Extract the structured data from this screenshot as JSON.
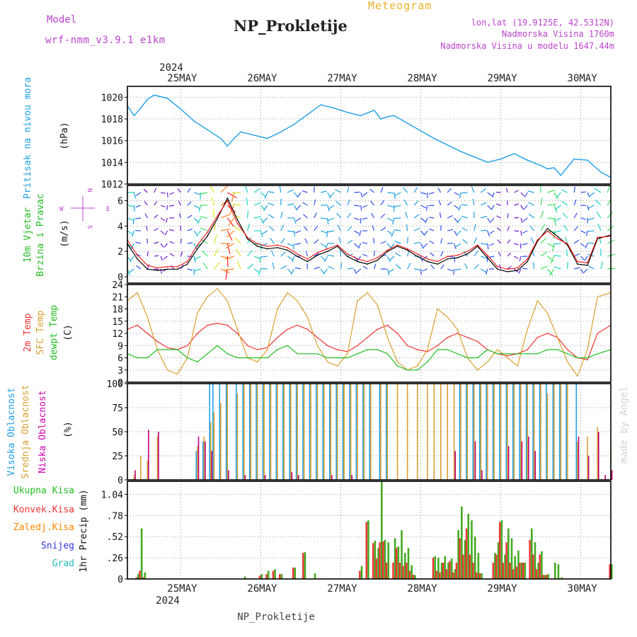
{
  "header": {
    "model_label": "Model",
    "model_name": "wrf-nmm_v3.9.1 e1km",
    "station": "NP_Prokletije",
    "meteogram": "Meteogram",
    "lonlat": "lon,lat (19.9125E, 42.5312N)",
    "elevation": "Nadmorska Visina 1760m",
    "model_elevation": "Nadmorska Visina u modelu 1647.44m"
  },
  "footer": {
    "station": "NP_Prokletije",
    "made_by": "made by Angel"
  },
  "time_axis": {
    "year": "2024",
    "days": [
      "25MAY",
      "26MAY",
      "27MAY",
      "28MAY",
      "29MAY",
      "30MAY"
    ],
    "range_hours": [
      0,
      145
    ]
  },
  "colors": {
    "pressure": "#1ea0e6",
    "wind_speed": "#000000",
    "gust": "#ff0000",
    "t2m": "#ee3333",
    "sfc": "#d9a030",
    "dewpt": "#22bb22",
    "cloud_high": "#22a0e6",
    "cloud_mid": "#d9a030",
    "cloud_low": "#bb0077",
    "precip_total": "#44aa22",
    "precip_conv": "#ee3333",
    "label_green": "#22bb22",
    "label_red": "#ee3333",
    "label_orange": "#ff8800",
    "label_blue": "#3333dd",
    "label_cyan": "#22bbbb",
    "label_purple": "#bb22cc",
    "label_magenta": "#cc00aa"
  },
  "panels": {
    "pressure": {
      "labels": [
        "Pritisak na nivou mora"
      ],
      "unit": "(hPa)"
    },
    "wind": {
      "labels": [
        "10m Vjetar",
        "Brzina i Pravac"
      ],
      "unit": "(m/s)",
      "compass": {
        "n": "N",
        "s": "S",
        "w": "W",
        "e": "E"
      }
    },
    "temp": {
      "labels": [
        "2m Temp",
        "SFC Temp",
        "dewpt Temp"
      ],
      "unit": "(C)"
    },
    "cloud": {
      "labels": [
        "Visoka Oblacnost",
        "Srednja Oblacnost",
        "Niska Oblacnost"
      ],
      "unit": "(%)"
    },
    "precip": {
      "labels": [
        "Ukupna Kisa",
        "Konvek.Kisa",
        "Zaledj.Kisa",
        "Snijeg",
        "Grad"
      ],
      "unit": "1hr Precip (mm)"
    }
  },
  "chart_data": [
    {
      "type": "line",
      "panel": "pressure",
      "ylabel": "(hPa)",
      "ylim": [
        1012,
        1021
      ],
      "yticks": [
        1012,
        1014,
        1016,
        1018,
        1020
      ],
      "x_hours": [
        0,
        2,
        4,
        6,
        8,
        12,
        16,
        20,
        24,
        28,
        30,
        32,
        34,
        38,
        42,
        46,
        50,
        54,
        58,
        62,
        66,
        70,
        74,
        76,
        78,
        80,
        84,
        88,
        92,
        96,
        100,
        104,
        108,
        112,
        116,
        120,
        124,
        126,
        128,
        130,
        134,
        138,
        142,
        145
      ],
      "series": [
        {
          "values": [
            1019.2,
            1018.3,
            1019.0,
            1019.8,
            1020.2,
            1019.9,
            1018.9,
            1017.8,
            1017.0,
            1016.2,
            1015.5,
            1016.2,
            1016.8,
            1016.5,
            1016.2,
            1016.8,
            1017.5,
            1018.4,
            1019.3,
            1019.0,
            1018.6,
            1018.3,
            1018.8,
            1018.0,
            1018.2,
            1018.3,
            1017.6,
            1016.9,
            1016.2,
            1015.6,
            1015.0,
            1014.5,
            1014.0,
            1014.3,
            1014.8,
            1014.2,
            1013.7,
            1013.4,
            1013.5,
            1012.8,
            1014.3,
            1014.2,
            1013.1,
            1012.6
          ]
        }
      ]
    },
    {
      "type": "line",
      "panel": "wind",
      "ylabel": "(m/s)",
      "ylim": [
        -0.5,
        7.2
      ],
      "yticks": [
        0,
        2,
        4,
        6
      ],
      "x_hours": [
        0,
        3,
        6,
        9,
        12,
        15,
        18,
        21,
        24,
        27,
        30,
        33,
        36,
        39,
        42,
        45,
        48,
        51,
        54,
        57,
        60,
        63,
        66,
        69,
        72,
        75,
        78,
        81,
        84,
        87,
        90,
        93,
        96,
        99,
        102,
        105,
        108,
        111,
        114,
        117,
        120,
        123,
        126,
        129,
        132,
        135,
        138,
        141,
        145
      ],
      "series": [
        {
          "name": "speed",
          "values": [
            2.6,
            1.4,
            0.6,
            0.5,
            0.6,
            0.6,
            1.0,
            2.2,
            3.2,
            4.6,
            6.2,
            4.5,
            3.0,
            2.4,
            2.2,
            2.3,
            2.1,
            1.6,
            1.2,
            1.7,
            2.0,
            2.4,
            1.6,
            1.2,
            1.0,
            1.3,
            2.0,
            2.4,
            2.1,
            1.6,
            1.2,
            1.0,
            1.4,
            1.5,
            1.8,
            2.4,
            1.5,
            0.6,
            0.4,
            0.5,
            1.2,
            2.8,
            3.8,
            3.2,
            2.5,
            1.0,
            0.9,
            3.0,
            3.3
          ]
        },
        {
          "name": "gust",
          "values": [
            2.9,
            1.7,
            0.9,
            0.7,
            0.8,
            0.8,
            1.2,
            2.5,
            3.5,
            4.8,
            6.0,
            4.2,
            3.1,
            2.6,
            2.4,
            2.5,
            2.3,
            1.8,
            1.4,
            1.9,
            2.2,
            2.5,
            1.8,
            1.4,
            1.2,
            1.5,
            2.1,
            2.5,
            2.2,
            1.8,
            1.4,
            1.2,
            1.6,
            1.7,
            2.0,
            2.5,
            1.7,
            0.8,
            0.6,
            0.7,
            1.4,
            2.9,
            3.6,
            3.0,
            2.6,
            1.2,
            1.1,
            3.1,
            3.2
          ]
        }
      ]
    },
    {
      "type": "line",
      "panel": "temperature",
      "ylabel": "(C)",
      "ylim": [
        0,
        24
      ],
      "yticks": [
        0,
        3,
        6,
        9,
        12,
        15,
        18,
        21,
        24
      ],
      "x_hours": [
        0,
        3,
        6,
        9,
        12,
        15,
        18,
        21,
        24,
        27,
        30,
        33,
        36,
        39,
        42,
        45,
        48,
        51,
        54,
        57,
        60,
        63,
        66,
        69,
        72,
        75,
        78,
        81,
        84,
        87,
        90,
        93,
        96,
        99,
        102,
        105,
        108,
        111,
        114,
        117,
        120,
        123,
        126,
        129,
        132,
        135,
        138,
        141,
        145
      ],
      "series": [
        {
          "name": "t2m",
          "values": [
            13,
            14,
            12,
            10,
            8.5,
            8,
            9,
            12,
            14,
            14.5,
            14,
            12,
            9,
            8,
            8.5,
            11,
            13,
            14,
            13,
            11,
            9,
            8,
            7.5,
            9,
            11,
            13,
            14,
            12,
            9,
            8,
            7.5,
            9,
            11,
            12,
            11,
            10,
            8,
            7,
            6.5,
            7,
            8,
            11,
            12,
            11,
            8,
            6,
            5.5,
            12,
            14
          ]
        },
        {
          "name": "sfc",
          "values": [
            20,
            22,
            16,
            8,
            3,
            2,
            6,
            17,
            21,
            23,
            20,
            13,
            6,
            5,
            8,
            18,
            22,
            20,
            16,
            9,
            5,
            4,
            7,
            20,
            22,
            19,
            11,
            5,
            3,
            4,
            8,
            18,
            16,
            13,
            6,
            3,
            5,
            8,
            6,
            4,
            13,
            20,
            17,
            11,
            5,
            1.5,
            8,
            21,
            22
          ]
        },
        {
          "name": "dewpt",
          "values": [
            7,
            6,
            6,
            8,
            8,
            8,
            6,
            5,
            7,
            9,
            7,
            6,
            6,
            6,
            6,
            8,
            9,
            7,
            7,
            7,
            6,
            6,
            6,
            7,
            8,
            8,
            7,
            4,
            3,
            3,
            5,
            8,
            8,
            7,
            6,
            6,
            8,
            7,
            7,
            7,
            7,
            7,
            8,
            8,
            7,
            6,
            6,
            7,
            8
          ]
        }
      ]
    },
    {
      "type": "bar",
      "panel": "clouds",
      "ylabel": "(%)",
      "ylim": [
        0,
        100
      ],
      "yticks": [
        0,
        25,
        50,
        75,
        100
      ],
      "x_hours": [
        2,
        4,
        6,
        9,
        12,
        15,
        21,
        23,
        25,
        26,
        28,
        30,
        33,
        35,
        37,
        39,
        41,
        43,
        45,
        47,
        49,
        51,
        53,
        55,
        57,
        59,
        61,
        63,
        65,
        67,
        69,
        71,
        73,
        76,
        78,
        81,
        84,
        87,
        90,
        92,
        94,
        96,
        98,
        100,
        102,
        104,
        106,
        108,
        110,
        112,
        114,
        116,
        118,
        120,
        122,
        124,
        126,
        128,
        130,
        132,
        135,
        138,
        141,
        143,
        145
      ],
      "series": [
        {
          "name": "high",
          "values": [
            0,
            0,
            0,
            0,
            0,
            0,
            30,
            40,
            100,
            100,
            100,
            100,
            100,
            100,
            100,
            100,
            100,
            100,
            100,
            100,
            100,
            100,
            100,
            100,
            100,
            100,
            100,
            100,
            100,
            100,
            100,
            100,
            100,
            100,
            100,
            0,
            0,
            0,
            0,
            0,
            0,
            0,
            0,
            100,
            100,
            100,
            100,
            100,
            100,
            100,
            100,
            100,
            100,
            100,
            100,
            100,
            100,
            100,
            100,
            100,
            100,
            0,
            0,
            0,
            0
          ]
        },
        {
          "name": "mid",
          "values": [
            5,
            25,
            20,
            45,
            0,
            0,
            35,
            45,
            60,
            70,
            80,
            100,
            90,
            100,
            100,
            100,
            100,
            100,
            100,
            100,
            100,
            100,
            100,
            100,
            100,
            100,
            100,
            100,
            100,
            100,
            100,
            100,
            100,
            100,
            100,
            100,
            100,
            100,
            100,
            100,
            100,
            100,
            100,
            100,
            100,
            100,
            100,
            100,
            100,
            100,
            100,
            100,
            100,
            100,
            100,
            100,
            90,
            100,
            100,
            100,
            40,
            45,
            55,
            0,
            35
          ]
        },
        {
          "name": "low",
          "values": [
            10,
            0,
            52,
            50,
            0,
            0,
            45,
            40,
            30,
            0,
            0,
            10,
            0,
            5,
            0,
            0,
            5,
            0,
            0,
            0,
            8,
            5,
            0,
            0,
            0,
            0,
            5,
            0,
            0,
            5,
            0,
            0,
            0,
            0,
            0,
            0,
            0,
            0,
            0,
            0,
            0,
            0,
            30,
            0,
            0,
            40,
            10,
            0,
            0,
            0,
            35,
            0,
            40,
            45,
            30,
            0,
            0,
            0,
            0,
            0,
            45,
            25,
            50,
            5,
            10
          ]
        }
      ]
    },
    {
      "type": "bar",
      "panel": "precipitation",
      "ylabel": "1hr Precip (mm)",
      "ylim": [
        0,
        1.2
      ],
      "yticks": [
        0,
        0.26,
        0.52,
        0.78,
        1.04
      ],
      "x_hours": [
        3,
        4,
        5,
        35,
        40,
        42,
        44,
        46,
        50,
        53,
        56,
        70,
        72,
        74,
        75,
        76,
        77,
        78,
        80,
        81,
        82,
        83,
        84,
        85,
        86,
        92,
        93,
        94,
        95,
        96,
        97,
        98,
        99,
        100,
        101,
        102,
        103,
        104,
        105,
        106,
        110,
        111,
        112,
        113,
        114,
        115,
        116,
        117,
        118,
        119,
        121,
        122,
        123,
        124,
        125,
        126,
        128,
        129,
        130,
        145
      ],
      "series": [
        {
          "name": "total",
          "values": [
            0.06,
            0.62,
            0.08,
            0.03,
            0.06,
            0.1,
            0.12,
            0.06,
            0.14,
            0.33,
            0.07,
            0.16,
            0.72,
            0.47,
            0.38,
            1.21,
            0.48,
            0.45,
            0.5,
            0.4,
            0.6,
            0.32,
            0.38,
            0.17,
            0.05,
            0.28,
            0.26,
            0.2,
            0.28,
            0.2,
            0.25,
            0.12,
            0.6,
            0.89,
            0.48,
            0.8,
            0.72,
            0.52,
            0.32,
            0.07,
            0.32,
            0.45,
            0.72,
            0.3,
            0.62,
            0.5,
            0.28,
            0.35,
            0.2,
            0.2,
            0.62,
            0.45,
            0.2,
            0.34,
            0.05,
            0.06,
            0.2,
            0.18,
            0.02,
            0.18
          ]
        },
        {
          "name": "convective",
          "values": [
            0.02,
            0.1,
            0.02,
            0,
            0.04,
            0.06,
            0.1,
            0.06,
            0.14,
            0.32,
            0,
            0.1,
            0.7,
            0.44,
            0.25,
            0.45,
            0.46,
            0.2,
            0.2,
            0.38,
            0.2,
            0.16,
            0.2,
            0.1,
            0.05,
            0.26,
            0.1,
            0.08,
            0.2,
            0.12,
            0.22,
            0.08,
            0.2,
            0.5,
            0.3,
            0.62,
            0.3,
            0.2,
            0.08,
            0.07,
            0.2,
            0.3,
            0.7,
            0.2,
            0.45,
            0.2,
            0.12,
            0.15,
            0.2,
            0.2,
            0.48,
            0.3,
            0.12,
            0.3,
            0.05,
            0.05,
            0,
            0,
            0,
            0.18
          ]
        }
      ]
    }
  ]
}
